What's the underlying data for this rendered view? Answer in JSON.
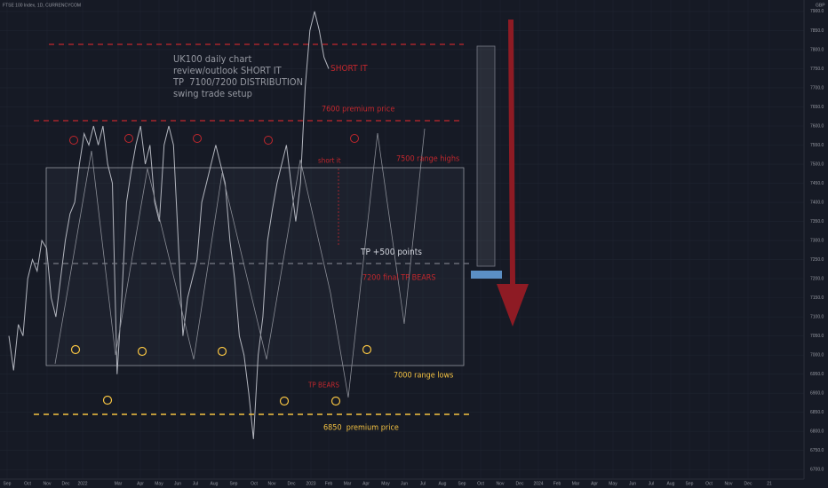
{
  "chart_data": {
    "type": "line",
    "title": "FTSE 100 Index, 1D, CURRENCYCOM",
    "currency": "GBP",
    "color": "#b2b5be",
    "values": [
      7050,
      6960,
      7080,
      7050,
      7200,
      7250,
      7220,
      7300,
      7280,
      7150,
      7100,
      7200,
      7300,
      7370,
      7400,
      7500,
      7580,
      7550,
      7600,
      7550,
      7600,
      7500,
      7450,
      6950,
      7150,
      7400,
      7480,
      7550,
      7600,
      7500,
      7550,
      7400,
      7350,
      7550,
      7600,
      7550,
      7300,
      7050,
      7150,
      7200,
      7250,
      7400,
      7450,
      7500,
      7550,
      7500,
      7450,
      7300,
      7200,
      7050,
      7000,
      6900,
      6780,
      7000,
      7100,
      7300,
      7380,
      7450,
      7500,
      7550,
      7450,
      7350,
      7450,
      7700,
      7850,
      7900,
      7850,
      7780,
      7750
    ],
    "ylim": [
      6675,
      7930
    ],
    "yticks": [
      {
        "value": 6700,
        "label": "6700.0"
      },
      {
        "value": 6750,
        "label": "6750.0"
      },
      {
        "value": 6800,
        "label": "6800.0"
      },
      {
        "value": 6850,
        "label": "6850.0"
      },
      {
        "value": 6900,
        "label": "6900.0"
      },
      {
        "value": 6950,
        "label": "6950.0"
      },
      {
        "value": 7000,
        "label": "7000.0"
      },
      {
        "value": 7050,
        "label": "7050.0"
      },
      {
        "value": 7100,
        "label": "7100.0"
      },
      {
        "value": 7150,
        "label": "7150.0"
      },
      {
        "value": 7200,
        "label": "7200.0"
      },
      {
        "value": 7250,
        "label": "7250.0"
      },
      {
        "value": 7300,
        "label": "7300.0"
      },
      {
        "value": 7350,
        "label": "7350.0"
      },
      {
        "value": 7400,
        "label": "7400.0"
      },
      {
        "value": 7450,
        "label": "7450.0"
      },
      {
        "value": 7500,
        "label": "7500.0"
      },
      {
        "value": 7550,
        "label": "7550.0"
      },
      {
        "value": 7600,
        "label": "7600.0"
      },
      {
        "value": 7650,
        "label": "7650.0"
      },
      {
        "value": 7700,
        "label": "7700.0"
      },
      {
        "value": 7750,
        "label": "7750.0"
      },
      {
        "value": 7800,
        "label": "7800.0"
      },
      {
        "value": 7850,
        "label": "7850.0"
      },
      {
        "value": 7900,
        "label": "7900.0"
      }
    ],
    "xtick_labels": [
      "Sep",
      "Oct",
      "Nov",
      "Dec",
      "2022",
      "Mar",
      "Apr",
      "May",
      "Jun",
      "Jul",
      "Aug",
      "Sep",
      "Oct",
      "Nov",
      "Dec",
      "2023",
      "Feb",
      "Mar",
      "Apr",
      "May",
      "Jun",
      "Jul",
      "Aug",
      "Sep",
      "Oct",
      "Nov",
      "Dec",
      "2024",
      "Feb",
      "Mar",
      "Apr",
      "May",
      "Jun",
      "Jul",
      "Aug",
      "Sep",
      "Oct",
      "Nov",
      "Dec",
      "21"
    ],
    "grid": true,
    "annotations": {
      "idea": [
        "UK100 daily chart",
        "review/outlook SHORT IT",
        "TP  7100/7200 DISTRIBUTION",
        "swing trade setup"
      ],
      "short_it": "SHORT IT",
      "premium_top": "7600 premium price",
      "short_it_small": "short it",
      "range_highs": "7500 range highs",
      "tp_points": "TP +500 points",
      "final_tp": "7200 final TP BEARS",
      "tp_bears": "TP BEARS",
      "range_lows": "7000 range lows",
      "premium_bottom": "6850  premium price"
    }
  }
}
